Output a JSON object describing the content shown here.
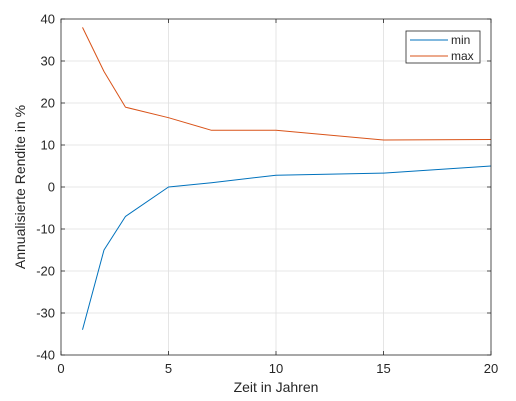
{
  "chart_data": {
    "type": "line",
    "title": "",
    "xlabel": "Zeit in Jahren",
    "ylabel": "Annualisierte Rendite in %",
    "xlim": [
      0,
      20
    ],
    "ylim": [
      -40,
      40
    ],
    "xticks": [
      0,
      5,
      10,
      15,
      20
    ],
    "yticks": [
      -40,
      -30,
      -20,
      -10,
      0,
      10,
      20,
      30,
      40
    ],
    "grid": true,
    "legend": "top-right",
    "series": [
      {
        "name": "min",
        "color": "#0072BD",
        "x": [
          1,
          2,
          3,
          5,
          7,
          10,
          15,
          20
        ],
        "y": [
          -34,
          -15,
          -7,
          0,
          1,
          2.8,
          3.3,
          5
        ]
      },
      {
        "name": "max",
        "color": "#D95319",
        "x": [
          1,
          2,
          3,
          5,
          7,
          10,
          15,
          20
        ],
        "y": [
          38,
          27.5,
          19,
          16.5,
          13.5,
          13.5,
          11.2,
          11.3
        ]
      }
    ]
  }
}
